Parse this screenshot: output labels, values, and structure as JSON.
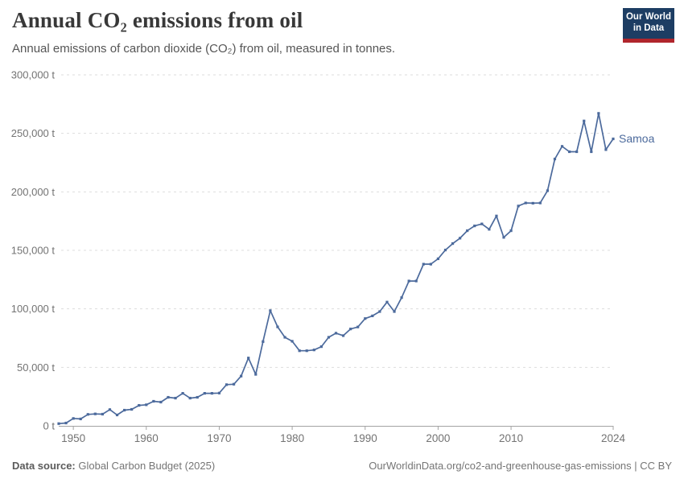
{
  "header": {
    "title": "Annual CO₂ emissions from oil",
    "subtitle": "Annual emissions of carbon dioxide (CO₂) from oil, measured in tonnes."
  },
  "logo": {
    "line1": "Our World",
    "line2": "in Data",
    "background_color": "#1d3d63",
    "bar_color": "#b0252c"
  },
  "chart_data": {
    "type": "line",
    "title": "Annual CO₂ emissions from oil",
    "unit": "t",
    "grid": true,
    "legend_position": "end-of-line",
    "axis_color": "#a3a3a3",
    "gridline_color": "#dddddd",
    "tick_label_color": "#737373",
    "xlim": [
      1948,
      2024
    ],
    "ylim": [
      0,
      300000
    ],
    "x_ticks": [
      1950,
      1960,
      1970,
      1980,
      1990,
      2000,
      2010,
      2024
    ],
    "y_ticks": [
      0,
      50000,
      100000,
      150000,
      200000,
      250000,
      300000
    ],
    "y_tick_labels": [
      "0 t",
      "50,000 t",
      "100,000 t",
      "150,000 t",
      "200,000 t",
      "250,000 t",
      "300,000 t"
    ],
    "series": [
      {
        "name": "Samoa",
        "color": "#4C6A9C",
        "years": [
          1948,
          1949,
          1950,
          1951,
          1952,
          1953,
          1954,
          1955,
          1956,
          1957,
          1958,
          1959,
          1960,
          1961,
          1962,
          1963,
          1964,
          1965,
          1966,
          1967,
          1968,
          1969,
          1970,
          1971,
          1972,
          1973,
          1974,
          1975,
          1976,
          1977,
          1978,
          1979,
          1980,
          1981,
          1982,
          1983,
          1984,
          1985,
          1986,
          1987,
          1988,
          1989,
          1990,
          1991,
          1992,
          1993,
          1994,
          1995,
          1996,
          1997,
          1998,
          1999,
          2000,
          2001,
          2002,
          2003,
          2004,
          2005,
          2006,
          2007,
          2008,
          2009,
          2010,
          2011,
          2012,
          2013,
          2014,
          2015,
          2016,
          2017,
          2018,
          2019,
          2020,
          2021,
          2022,
          2023,
          2024
        ],
        "values": [
          1900,
          2400,
          6300,
          5900,
          9800,
          10200,
          10000,
          13900,
          9300,
          13400,
          14100,
          17500,
          18000,
          21000,
          20300,
          24400,
          23700,
          27800,
          23700,
          24400,
          27800,
          27800,
          28000,
          35200,
          35600,
          42500,
          58000,
          44000,
          72000,
          98500,
          84600,
          75700,
          72300,
          64200,
          64200,
          64900,
          67700,
          75700,
          79200,
          77100,
          82800,
          84500,
          91700,
          94000,
          97700,
          105800,
          97700,
          109600,
          123800,
          123800,
          138200,
          138200,
          142800,
          150300,
          155800,
          160400,
          166800,
          170900,
          172600,
          168000,
          179400,
          161100,
          166800,
          187900,
          190500,
          190300,
          190500,
          201000,
          228100,
          238900,
          234300,
          234300,
          260600,
          234300,
          267100,
          236100,
          245300
        ]
      }
    ]
  },
  "footer": {
    "source_label": "Data source:",
    "source_text": " Global Carbon Budget (2025)",
    "right_text": "OurWorldinData.org/co2-and-greenhouse-gas-emissions | CC BY"
  }
}
